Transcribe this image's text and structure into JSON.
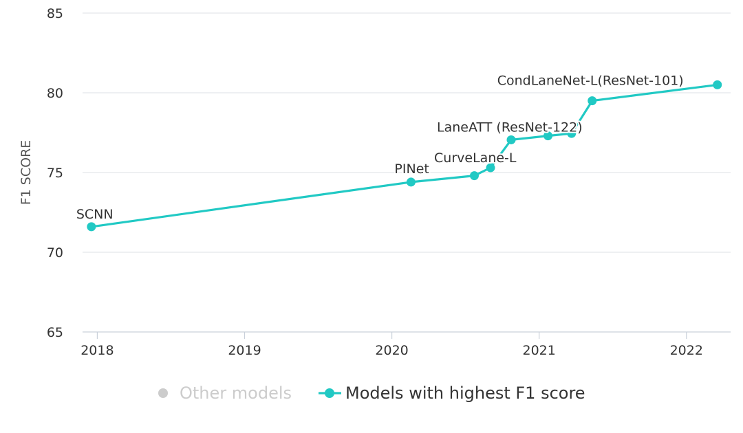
{
  "chart_data": {
    "type": "line",
    "ylabel": "F1 SCORE",
    "xlabel": "",
    "ylim": [
      65,
      85
    ],
    "yticks": [
      65,
      70,
      75,
      80,
      85
    ],
    "xlim": [
      2017.9,
      2022.3
    ],
    "xticks": [
      2018,
      2019,
      2020,
      2021,
      2022
    ],
    "xtick_labels": [
      "2018",
      "2019",
      "2020",
      "2021",
      "2022"
    ],
    "grid": "horizontal",
    "legend_position": "bottom",
    "legend": [
      {
        "label": "Other models",
        "color": "#cccccc",
        "active": false
      },
      {
        "label": "Models with highest F1 score",
        "color": "#21c9c4",
        "active": true
      }
    ],
    "series": [
      {
        "name": "Models with highest F1 score",
        "color": "#21c9c4",
        "points": [
          {
            "x": 2017.96,
            "y": 71.6,
            "label": "SCNN"
          },
          {
            "x": 2020.13,
            "y": 74.4,
            "label": "PINet"
          },
          {
            "x": 2020.56,
            "y": 74.8,
            "label": ""
          },
          {
            "x": 2020.67,
            "y": 75.3,
            "label": "CurveLane-L"
          },
          {
            "x": 2020.81,
            "y": 77.05,
            "label": "LaneATT (ResNet-122)"
          },
          {
            "x": 2021.06,
            "y": 77.3,
            "label": ""
          },
          {
            "x": 2021.22,
            "y": 77.45,
            "label": ""
          },
          {
            "x": 2021.36,
            "y": 79.5,
            "label": ""
          },
          {
            "x": 2022.21,
            "y": 80.5,
            "label": "CondLaneNet-L(ResNet-101)"
          }
        ]
      }
    ]
  }
}
